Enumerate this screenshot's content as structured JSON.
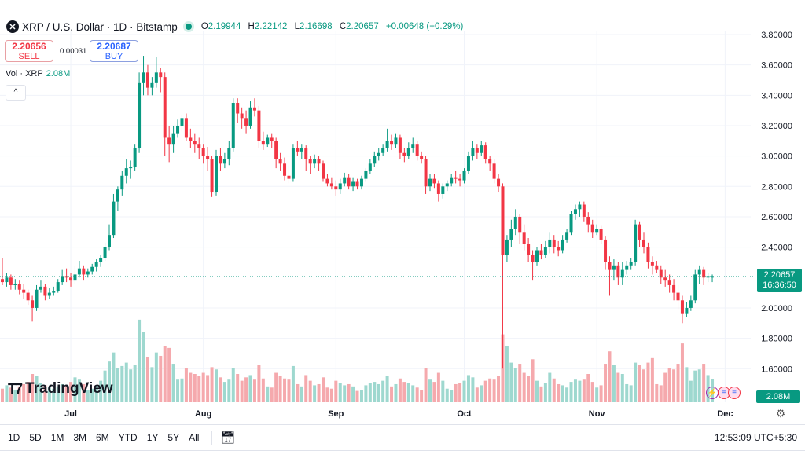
{
  "header": {
    "symbol_icon": "xrp-logo-icon",
    "title": "XRP / U.S. Dollar · 1D · Bitstamp",
    "market_status_icon": "market-open-dot-icon",
    "ohlc": {
      "o_label": "O",
      "o": "2.19944",
      "h_label": "H",
      "h": "2.22142",
      "l_label": "L",
      "l": "2.16698",
      "c_label": "C",
      "c": "2.20657",
      "change": "+0.00648 (+0.29%)"
    }
  },
  "trade": {
    "sell_price": "2.20656",
    "sell_label": "SELL",
    "spread": "0.00031",
    "buy_price": "2.20687",
    "buy_label": "BUY"
  },
  "volume_legend": {
    "label": "Vol · XRP",
    "value": "2.08M"
  },
  "collapse_icon": "chevron-up-icon",
  "watermark": "TradingView",
  "price_label": {
    "price": "2.20657",
    "countdown": "16:36:50"
  },
  "volume_label": "2.08M",
  "bottom": {
    "ranges": [
      "1D",
      "5D",
      "1M",
      "3M",
      "6M",
      "YTD",
      "1Y",
      "5Y",
      "All"
    ],
    "date_range_icon": "calendar-icon",
    "clock": "12:53:09 UTC+5:30"
  },
  "colors": {
    "up": "#089981",
    "down": "#f23645",
    "up_vol": "#9ed8cf",
    "down_vol": "#f5a9ad",
    "accent": "#2962ff"
  },
  "chart_data": {
    "type": "candlestick",
    "title": "XRP / U.S. Dollar · 1D · Bitstamp",
    "y_ticks": [
      "3.80000",
      "3.60000",
      "3.40000",
      "3.20000",
      "3.00000",
      "2.80000",
      "2.60000",
      "2.40000",
      "2.00000",
      "1.80000",
      "1.60000"
    ],
    "ylim": [
      1.5,
      3.85
    ],
    "x_ticks": [
      {
        "label": "Jul",
        "date": "07-01"
      },
      {
        "label": "Aug",
        "date": "08-01"
      },
      {
        "label": "Sep",
        "date": "09-01"
      },
      {
        "label": "Oct",
        "date": "10-01"
      },
      {
        "label": "Nov",
        "date": "11-01"
      },
      {
        "label": "Dec",
        "date": "12-01"
      }
    ],
    "last_price": 2.20657,
    "volume_unit": "M",
    "columns": [
      "date",
      "open",
      "high",
      "low",
      "close",
      "volume"
    ],
    "candles": [
      [
        "06-15",
        2.19,
        2.33,
        2.15,
        2.17,
        1.2
      ],
      [
        "06-16",
        2.17,
        2.23,
        2.14,
        2.2,
        1.5
      ],
      [
        "06-17",
        2.2,
        2.22,
        2.12,
        2.15,
        1.3
      ],
      [
        "06-18",
        2.15,
        2.19,
        2.12,
        2.16,
        1.1
      ],
      [
        "06-19",
        2.16,
        2.18,
        2.09,
        2.12,
        1.4
      ],
      [
        "06-20",
        2.12,
        2.16,
        2.06,
        2.1,
        1.6
      ],
      [
        "06-21",
        2.1,
        2.12,
        2.02,
        2.05,
        1.8
      ],
      [
        "06-22",
        2.05,
        2.08,
        1.91,
        2.0,
        2.5
      ],
      [
        "06-23",
        2.0,
        2.15,
        1.98,
        2.12,
        2.3
      ],
      [
        "06-24",
        2.12,
        2.18,
        2.1,
        2.14,
        1.7
      ],
      [
        "06-25",
        2.14,
        2.16,
        2.05,
        2.08,
        1.5
      ],
      [
        "06-26",
        2.08,
        2.13,
        2.06,
        2.1,
        1.3
      ],
      [
        "06-27",
        2.1,
        2.14,
        2.08,
        2.11,
        1.2
      ],
      [
        "06-28",
        2.11,
        2.19,
        2.1,
        2.17,
        1.4
      ],
      [
        "06-29",
        2.17,
        2.25,
        2.15,
        2.21,
        1.6
      ],
      [
        "06-30",
        2.21,
        2.26,
        2.17,
        2.2,
        1.5
      ],
      [
        "07-01",
        2.2,
        2.23,
        2.14,
        2.18,
        1.8
      ],
      [
        "07-02",
        2.18,
        2.28,
        2.16,
        2.22,
        2.2
      ],
      [
        "07-03",
        2.22,
        2.31,
        2.2,
        2.26,
        2.0
      ],
      [
        "07-04",
        2.26,
        2.28,
        2.18,
        2.22,
        1.6
      ],
      [
        "07-05",
        2.22,
        2.26,
        2.2,
        2.24,
        1.1
      ],
      [
        "07-06",
        2.24,
        2.29,
        2.22,
        2.27,
        1.2
      ],
      [
        "07-07",
        2.27,
        2.32,
        2.24,
        2.3,
        1.5
      ],
      [
        "07-08",
        2.3,
        2.35,
        2.27,
        2.33,
        1.9
      ],
      [
        "07-09",
        2.33,
        2.43,
        2.31,
        2.4,
        2.8
      ],
      [
        "07-10",
        2.4,
        2.55,
        2.38,
        2.48,
        3.6
      ],
      [
        "07-11",
        2.48,
        2.75,
        2.46,
        2.7,
        4.4
      ],
      [
        "07-12",
        2.7,
        2.8,
        2.64,
        2.78,
        3.0
      ],
      [
        "07-13",
        2.78,
        2.9,
        2.74,
        2.87,
        3.2
      ],
      [
        "07-14",
        2.87,
        2.98,
        2.82,
        2.92,
        3.5
      ],
      [
        "07-15",
        2.92,
        2.97,
        2.85,
        2.93,
        2.9
      ],
      [
        "07-16",
        2.93,
        3.08,
        2.9,
        3.05,
        3.3
      ],
      [
        "07-17",
        3.05,
        3.55,
        3.02,
        3.48,
        7.3
      ],
      [
        "07-18",
        3.48,
        3.66,
        3.4,
        3.55,
        6.2
      ],
      [
        "07-19",
        3.55,
        3.6,
        3.4,
        3.45,
        4.0
      ],
      [
        "07-20",
        3.45,
        3.52,
        3.4,
        3.48,
        3.1
      ],
      [
        "07-21",
        3.48,
        3.65,
        3.45,
        3.55,
        4.4
      ],
      [
        "07-22",
        3.55,
        3.58,
        3.42,
        3.52,
        4.1
      ],
      [
        "07-23",
        3.52,
        3.55,
        3.0,
        3.12,
        5.0
      ],
      [
        "07-24",
        3.12,
        3.2,
        2.96,
        3.08,
        4.8
      ],
      [
        "07-25",
        3.08,
        3.2,
        3.02,
        3.15,
        3.4
      ],
      [
        "07-26",
        3.15,
        3.24,
        3.12,
        3.2,
        2.0
      ],
      [
        "07-27",
        3.2,
        3.27,
        3.16,
        3.25,
        2.1
      ],
      [
        "07-28",
        3.25,
        3.28,
        3.1,
        3.12,
        3.0
      ],
      [
        "07-29",
        3.12,
        3.18,
        3.05,
        3.1,
        2.6
      ],
      [
        "07-30",
        3.1,
        3.15,
        3.02,
        3.08,
        2.5
      ],
      [
        "07-31",
        3.08,
        3.12,
        2.98,
        3.05,
        2.3
      ],
      [
        "08-01",
        3.05,
        3.08,
        2.95,
        3.0,
        2.6
      ],
      [
        "08-02",
        3.0,
        3.06,
        2.9,
        2.98,
        2.4
      ],
      [
        "08-03",
        2.98,
        3.0,
        2.73,
        2.76,
        3.1
      ],
      [
        "08-04",
        2.76,
        3.04,
        2.74,
        3.0,
        2.9
      ],
      [
        "08-05",
        3.0,
        3.05,
        2.9,
        2.95,
        2.2
      ],
      [
        "08-06",
        2.95,
        3.02,
        2.92,
        2.98,
        1.8
      ],
      [
        "08-07",
        2.98,
        3.1,
        2.94,
        3.05,
        2.0
      ],
      [
        "08-08",
        3.05,
        3.38,
        3.03,
        3.35,
        3.0
      ],
      [
        "08-09",
        3.35,
        3.38,
        3.22,
        3.28,
        2.5
      ],
      [
        "08-10",
        3.28,
        3.32,
        3.18,
        3.25,
        1.9
      ],
      [
        "08-11",
        3.25,
        3.3,
        3.15,
        3.2,
        2.2
      ],
      [
        "08-12",
        3.2,
        3.36,
        3.18,
        3.32,
        2.4
      ],
      [
        "08-13",
        3.32,
        3.38,
        3.26,
        3.3,
        2.0
      ],
      [
        "08-14",
        3.3,
        3.33,
        3.05,
        3.1,
        3.3
      ],
      [
        "08-15",
        3.1,
        3.16,
        3.04,
        3.08,
        2.1
      ],
      [
        "08-16",
        3.08,
        3.14,
        3.06,
        3.12,
        1.4
      ],
      [
        "08-17",
        3.12,
        3.15,
        3.05,
        3.1,
        1.3
      ],
      [
        "08-18",
        3.1,
        3.12,
        2.92,
        2.98,
        2.6
      ],
      [
        "08-19",
        2.98,
        3.02,
        2.9,
        2.95,
        2.3
      ],
      [
        "08-20",
        2.95,
        2.99,
        2.84,
        2.87,
        2.1
      ],
      [
        "08-21",
        2.87,
        2.94,
        2.82,
        2.85,
        2.0
      ],
      [
        "08-22",
        2.85,
        3.08,
        2.83,
        3.05,
        3.2
      ],
      [
        "08-23",
        3.05,
        3.1,
        3.0,
        3.03,
        1.6
      ],
      [
        "08-24",
        3.03,
        3.08,
        2.98,
        3.05,
        1.4
      ],
      [
        "08-25",
        3.05,
        3.07,
        2.9,
        2.98,
        2.4
      ],
      [
        "08-26",
        2.98,
        3.0,
        2.88,
        2.95,
        1.9
      ],
      [
        "08-27",
        2.95,
        3.01,
        2.92,
        2.98,
        1.5
      ],
      [
        "08-28",
        2.98,
        3.0,
        2.9,
        2.95,
        1.6
      ],
      [
        "08-29",
        2.95,
        2.97,
        2.83,
        2.85,
        2.2
      ],
      [
        "08-30",
        2.85,
        2.88,
        2.8,
        2.82,
        1.3
      ],
      [
        "08-31",
        2.82,
        2.86,
        2.78,
        2.8,
        1.2
      ],
      [
        "09-01",
        2.8,
        2.84,
        2.74,
        2.78,
        1.9
      ],
      [
        "09-02",
        2.78,
        2.85,
        2.75,
        2.82,
        1.7
      ],
      [
        "09-03",
        2.82,
        2.89,
        2.8,
        2.86,
        1.5
      ],
      [
        "09-04",
        2.86,
        2.88,
        2.78,
        2.8,
        1.6
      ],
      [
        "09-05",
        2.8,
        2.86,
        2.77,
        2.83,
        1.4
      ],
      [
        "09-06",
        2.83,
        2.85,
        2.78,
        2.8,
        1.0
      ],
      [
        "09-07",
        2.8,
        2.87,
        2.78,
        2.85,
        1.1
      ],
      [
        "09-08",
        2.85,
        2.92,
        2.83,
        2.9,
        1.5
      ],
      [
        "09-09",
        2.9,
        2.98,
        2.88,
        2.95,
        1.7
      ],
      [
        "09-10",
        2.95,
        3.03,
        2.93,
        3.0,
        1.8
      ],
      [
        "09-11",
        3.0,
        3.05,
        2.97,
        3.02,
        1.6
      ],
      [
        "09-12",
        3.02,
        3.08,
        3.0,
        3.05,
        1.9
      ],
      [
        "09-13",
        3.05,
        3.18,
        3.03,
        3.1,
        2.3
      ],
      [
        "09-14",
        3.1,
        3.14,
        3.04,
        3.08,
        1.4
      ],
      [
        "09-15",
        3.08,
        3.15,
        3.05,
        3.12,
        1.6
      ],
      [
        "09-16",
        3.12,
        3.14,
        2.98,
        3.02,
        2.1
      ],
      [
        "09-17",
        3.02,
        3.05,
        2.96,
        3.0,
        1.8
      ],
      [
        "09-18",
        3.0,
        3.09,
        2.98,
        3.05,
        1.7
      ],
      [
        "09-19",
        3.05,
        3.12,
        3.02,
        3.08,
        1.5
      ],
      [
        "09-20",
        3.08,
        3.1,
        2.97,
        3.0,
        1.3
      ],
      [
        "09-21",
        3.0,
        3.03,
        2.95,
        2.98,
        1.1
      ],
      [
        "09-22",
        2.98,
        3.0,
        2.75,
        2.8,
        3.0
      ],
      [
        "09-23",
        2.8,
        2.88,
        2.77,
        2.85,
        2.0
      ],
      [
        "09-24",
        2.85,
        2.88,
        2.79,
        2.82,
        1.8
      ],
      [
        "09-25",
        2.82,
        2.84,
        2.7,
        2.75,
        2.6
      ],
      [
        "09-26",
        2.75,
        2.82,
        2.72,
        2.8,
        1.9
      ],
      [
        "09-27",
        2.8,
        2.84,
        2.77,
        2.82,
        1.2
      ],
      [
        "09-28",
        2.82,
        2.88,
        2.8,
        2.86,
        1.1
      ],
      [
        "09-29",
        2.86,
        2.9,
        2.82,
        2.85,
        1.6
      ],
      [
        "09-30",
        2.85,
        2.88,
        2.8,
        2.84,
        1.7
      ],
      [
        "10-01",
        2.84,
        2.92,
        2.82,
        2.9,
        1.9
      ],
      [
        "10-02",
        2.9,
        3.03,
        2.88,
        3.0,
        2.4
      ],
      [
        "10-03",
        3.0,
        3.1,
        2.97,
        3.05,
        2.2
      ],
      [
        "10-04",
        3.05,
        3.08,
        2.98,
        3.02,
        1.3
      ],
      [
        "10-05",
        3.02,
        3.1,
        3.0,
        3.07,
        1.5
      ],
      [
        "10-06",
        3.07,
        3.09,
        2.95,
        2.98,
        1.9
      ],
      [
        "10-07",
        2.98,
        3.0,
        2.9,
        2.95,
        2.1
      ],
      [
        "10-08",
        2.95,
        2.98,
        2.82,
        2.85,
        2.0
      ],
      [
        "10-09",
        2.85,
        2.88,
        2.76,
        2.8,
        2.3
      ],
      [
        "10-10",
        2.8,
        2.82,
        1.6,
        2.35,
        6.0
      ],
      [
        "10-11",
        2.35,
        2.48,
        2.3,
        2.45,
        5.0
      ],
      [
        "10-12",
        2.45,
        2.58,
        2.4,
        2.52,
        3.5
      ],
      [
        "10-13",
        2.52,
        2.65,
        2.48,
        2.6,
        3.0
      ],
      [
        "10-14",
        2.6,
        2.62,
        2.42,
        2.5,
        3.4
      ],
      [
        "10-15",
        2.5,
        2.55,
        2.38,
        2.42,
        2.6
      ],
      [
        "10-16",
        2.42,
        2.46,
        2.3,
        2.35,
        2.3
      ],
      [
        "10-17",
        2.35,
        2.38,
        2.18,
        2.3,
        3.8
      ],
      [
        "10-18",
        2.3,
        2.4,
        2.28,
        2.38,
        1.9
      ],
      [
        "10-19",
        2.38,
        2.42,
        2.32,
        2.35,
        1.4
      ],
      [
        "10-20",
        2.35,
        2.44,
        2.33,
        2.4,
        1.7
      ],
      [
        "10-21",
        2.4,
        2.5,
        2.36,
        2.45,
        2.6
      ],
      [
        "10-22",
        2.45,
        2.48,
        2.36,
        2.4,
        2.1
      ],
      [
        "10-23",
        2.4,
        2.44,
        2.34,
        2.38,
        1.6
      ],
      [
        "10-24",
        2.38,
        2.48,
        2.36,
        2.45,
        1.5
      ],
      [
        "10-25",
        2.45,
        2.52,
        2.43,
        2.5,
        1.3
      ],
      [
        "10-26",
        2.5,
        2.64,
        2.48,
        2.62,
        1.8
      ],
      [
        "10-27",
        2.62,
        2.68,
        2.58,
        2.65,
        2.0
      ],
      [
        "10-28",
        2.65,
        2.7,
        2.6,
        2.68,
        1.9
      ],
      [
        "10-29",
        2.68,
        2.7,
        2.57,
        2.6,
        2.0
      ],
      [
        "10-30",
        2.6,
        2.63,
        2.5,
        2.55,
        2.5
      ],
      [
        "10-31",
        2.55,
        2.58,
        2.46,
        2.5,
        1.8
      ],
      [
        "11-01",
        2.5,
        2.55,
        2.48,
        2.52,
        1.3
      ],
      [
        "11-02",
        2.52,
        2.54,
        2.42,
        2.45,
        1.5
      ],
      [
        "11-03",
        2.45,
        2.47,
        2.25,
        2.3,
        3.4
      ],
      [
        "11-04",
        2.3,
        2.34,
        2.08,
        2.25,
        4.5
      ],
      [
        "11-05",
        2.25,
        2.32,
        2.18,
        2.28,
        3.3
      ],
      [
        "11-06",
        2.28,
        2.3,
        2.15,
        2.2,
        2.6
      ],
      [
        "11-07",
        2.2,
        2.3,
        2.15,
        2.25,
        2.5
      ],
      [
        "11-08",
        2.25,
        2.31,
        2.22,
        2.28,
        1.6
      ],
      [
        "11-09",
        2.28,
        2.33,
        2.25,
        2.3,
        1.5
      ],
      [
        "11-10",
        2.3,
        2.58,
        2.28,
        2.55,
        3.5
      ],
      [
        "11-11",
        2.55,
        2.57,
        2.4,
        2.45,
        3.3
      ],
      [
        "11-12",
        2.45,
        2.5,
        2.36,
        2.4,
        2.9
      ],
      [
        "11-13",
        2.4,
        2.43,
        2.26,
        2.3,
        3.5
      ],
      [
        "11-14",
        2.3,
        2.34,
        2.22,
        2.28,
        3.9
      ],
      [
        "11-15",
        2.28,
        2.31,
        2.23,
        2.25,
        1.6
      ],
      [
        "11-16",
        2.25,
        2.28,
        2.16,
        2.2,
        1.5
      ],
      [
        "11-17",
        2.2,
        2.25,
        2.14,
        2.18,
        2.6
      ],
      [
        "11-18",
        2.18,
        2.22,
        2.1,
        2.15,
        3.0
      ],
      [
        "11-19",
        2.15,
        2.19,
        2.05,
        2.1,
        2.9
      ],
      [
        "11-20",
        2.1,
        2.15,
        1.99,
        2.05,
        3.4
      ],
      [
        "11-21",
        2.05,
        2.08,
        1.9,
        1.96,
        5.2
      ],
      [
        "11-22",
        1.96,
        2.04,
        1.94,
        2.0,
        3.1
      ],
      [
        "11-23",
        2.0,
        2.08,
        1.98,
        2.05,
        1.9
      ],
      [
        "11-24",
        2.05,
        2.25,
        2.03,
        2.22,
        2.8
      ],
      [
        "11-25",
        2.22,
        2.28,
        2.16,
        2.25,
        2.9
      ],
      [
        "11-26",
        2.25,
        2.27,
        2.15,
        2.2,
        3.4
      ],
      [
        "11-27",
        2.2,
        2.23,
        2.17,
        2.21,
        2.4
      ],
      [
        "11-28",
        2.2,
        2.22,
        2.17,
        2.21,
        2.08
      ]
    ]
  }
}
